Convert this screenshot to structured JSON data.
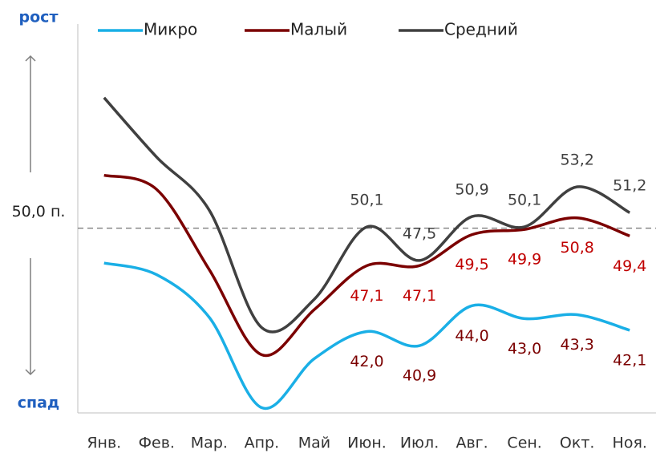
{
  "chart_data": {
    "type": "line",
    "categories": [
      "Янв.",
      "Фев.",
      "Мар.",
      "Апр.",
      "Май",
      "Июн.",
      "Июл.",
      "Авг.",
      "Сен.",
      "Окт.",
      "Ноя."
    ],
    "series": [
      {
        "name": "Микро",
        "color": "#1aafe6",
        "label_color": "#7b0000",
        "label_side": "below",
        "values": [
          47.3,
          46.4,
          43.1,
          36.1,
          39.9,
          42.0,
          40.9,
          44.0,
          43.0,
          43.3,
          42.1
        ],
        "value_labels": [
          null,
          null,
          null,
          null,
          null,
          "42,0",
          "40,9",
          "44,0",
          "43,0",
          "43,3",
          "42,1"
        ]
      },
      {
        "name": "Малый",
        "color": "#7b0000",
        "label_color": "#c00000",
        "label_side": "below",
        "values": [
          54.1,
          53.0,
          46.8,
          40.2,
          43.7,
          47.1,
          47.1,
          49.5,
          49.9,
          50.8,
          49.4
        ],
        "value_labels": [
          null,
          null,
          null,
          null,
          null,
          "47,1",
          "47,1",
          "49,5",
          "49,9",
          "50,8",
          "49,4"
        ]
      },
      {
        "name": "Средний",
        "color": "#404040",
        "label_color": "#404040",
        "label_side": "above",
        "values": [
          60.1,
          55.5,
          51.4,
          42.3,
          44.5,
          50.1,
          47.5,
          50.9,
          50.1,
          53.2,
          51.2
        ],
        "value_labels": [
          null,
          null,
          null,
          null,
          null,
          "50,1",
          "47,5",
          "50,9",
          "50,1",
          "53,2",
          "51,2"
        ]
      }
    ],
    "ylim": [
      35.7,
      65.8
    ],
    "reference_line": {
      "value": 50,
      "label": "50,0 п."
    },
    "annotations": {
      "top": "рост",
      "bottom": "спад"
    },
    "legend": "top",
    "grid": false
  }
}
